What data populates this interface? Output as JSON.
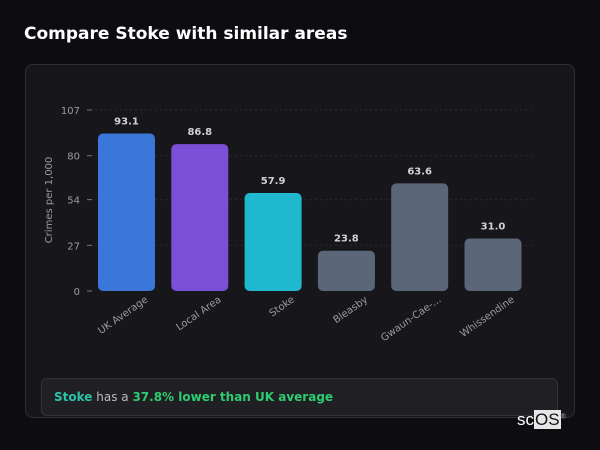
{
  "title": "Compare Stoke with similar areas",
  "chart_data": {
    "type": "bar",
    "ylabel": "Crimes per 1,000",
    "ylim": [
      0,
      107
    ],
    "yticks": [
      0,
      27,
      54,
      80,
      107
    ],
    "grid": true,
    "categories": [
      "UK Average",
      "Local Area",
      "Stoke",
      "Bleasby",
      "Gwaun-Cae-...",
      "Whissendine"
    ],
    "values": [
      93.1,
      86.8,
      57.9,
      23.8,
      63.6,
      31.0
    ],
    "value_labels": [
      "93.1",
      "86.8",
      "57.9",
      "23.8",
      "63.6",
      "31.0"
    ],
    "colors": [
      "#3b76d9",
      "#7b4fd6",
      "#1fb8cf",
      "#5b6679",
      "#5b6679",
      "#5b6679"
    ]
  },
  "summary": {
    "area": "Stoke",
    "middle": " has a ",
    "stat": "37.8% lower than UK average"
  },
  "logo": {
    "sc": "sc",
    "os": "OS",
    "mark": "®"
  }
}
